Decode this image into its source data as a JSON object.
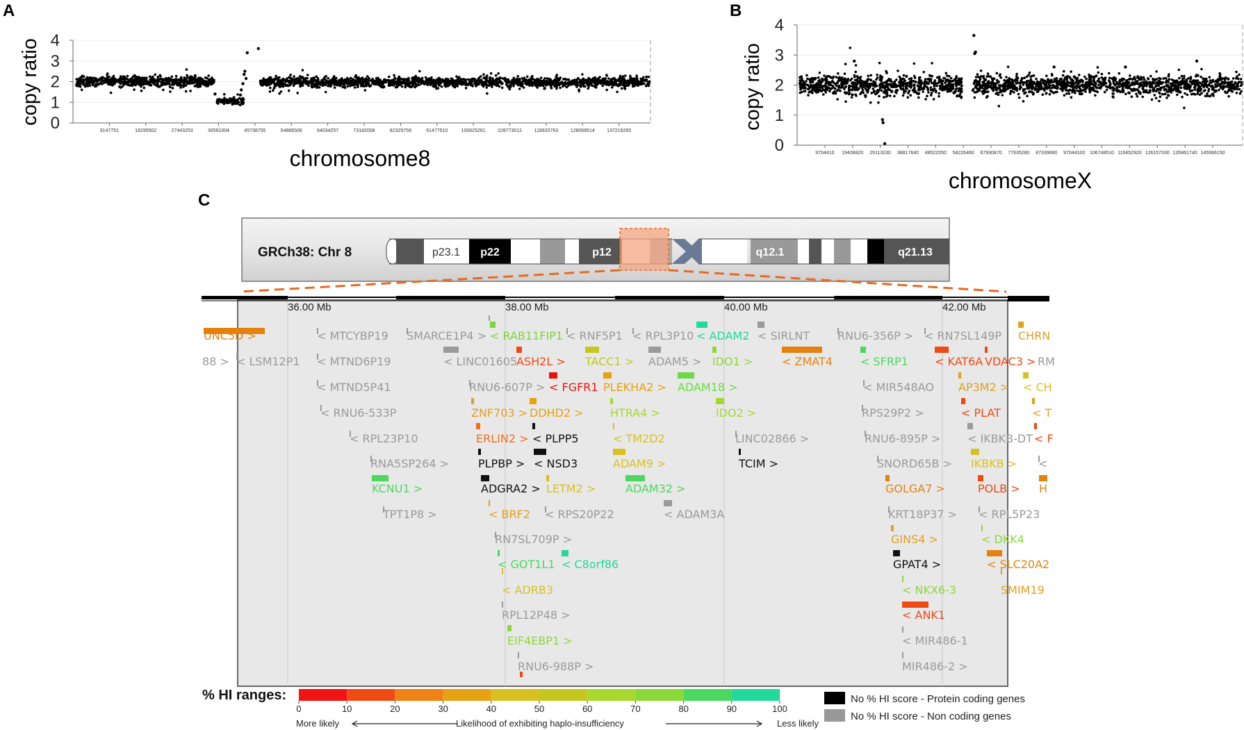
{
  "panels": {
    "a": "A",
    "b": "B",
    "c": "C"
  },
  "chart_data": [
    {
      "type": "scatter",
      "id": "A",
      "xlabel": "chromosome8",
      "ylabel": "copy ratio",
      "ylim": [
        0,
        4
      ],
      "yticks": [
        "0",
        "1",
        "2",
        "3",
        "4"
      ],
      "xlim": [
        0,
        145138636
      ],
      "xtick_labels": [
        "9147751",
        "18295502",
        "27443253",
        "36591004",
        "45738755",
        "54886506",
        "64034257",
        "73182008",
        "82329759",
        "91477510",
        "100625261",
        "109773012",
        "118920763",
        "128068514",
        "137216265"
      ],
      "segments": [
        {
          "start": 800000,
          "end": 35500000,
          "mean": 2.0,
          "sd": 0.12
        },
        {
          "start": 36200000,
          "end": 42900000,
          "mean": 1.05,
          "sd": 0.07
        },
        {
          "start": 47000000,
          "end": 145000000,
          "mean": 1.97,
          "sd": 0.12
        }
      ],
      "outliers": [
        [
          35700000,
          1.4
        ],
        [
          42100000,
          1.35
        ],
        [
          42300000,
          1.6
        ],
        [
          42700000,
          1.9
        ],
        [
          43000000,
          2.35
        ],
        [
          43200000,
          2.5
        ],
        [
          43500000,
          2.15
        ],
        [
          43800000,
          3.4
        ],
        [
          46600000,
          3.6
        ]
      ]
    },
    {
      "type": "scatter",
      "id": "B",
      "xlabel": "chromosomeX",
      "ylabel": "copy ratio",
      "ylim": [
        0,
        4
      ],
      "yticks": [
        "0",
        "1",
        "2",
        "3",
        "4"
      ],
      "xlim": [
        0,
        156040895
      ],
      "xtick_labels": [
        "9704410",
        "19408820",
        "29113230",
        "38817640",
        "48522050",
        "58226460",
        "67930870",
        "77635280",
        "87339690",
        "97044100",
        "106748510",
        "116452920",
        "126157330",
        "135861740",
        "145566150"
      ],
      "segments": [
        {
          "start": 800000,
          "end": 28500000,
          "mean": 2.0,
          "sd": 0.17
        },
        {
          "start": 28600000,
          "end": 30600000,
          "mean": 2.05,
          "sd": 0.2
        },
        {
          "start": 30600000,
          "end": 57800000,
          "mean": 2.0,
          "sd": 0.17
        },
        {
          "start": 61500000,
          "end": 156000000,
          "mean": 2.0,
          "sd": 0.16
        }
      ],
      "outliers": [
        [
          29900000,
          0.85
        ],
        [
          30100000,
          0.75
        ],
        [
          30700000,
          0.05
        ],
        [
          20000000,
          2.8
        ],
        [
          61900000,
          3.65
        ],
        [
          62200000,
          3.05
        ],
        [
          62500000,
          3.1
        ],
        [
          140000000,
          2.8
        ],
        [
          115000000,
          2.6
        ],
        [
          90000000,
          2.6
        ]
      ]
    }
  ],
  "ideogram": {
    "title": "GRCh38: Chr 8",
    "bands": [
      "p23.1",
      "p22",
      "p12",
      "q12.1",
      "q21.13"
    ]
  },
  "genome_browser": {
    "axis_labels": [
      "36.00 Mb",
      "38.00 Mb",
      "40.00 Mb",
      "42.00 Mb"
    ],
    "genes": [
      {
        "label": "UNC5D >",
        "color": "#E5820E"
      },
      {
        "label": "< MTCYBP19",
        "color": "#9a9a9a"
      },
      {
        "label": "SMARCE1P4 >",
        "color": "#9a9a9a"
      },
      {
        "label": "< RAB11FIP1",
        "color": "#7CD63A"
      },
      {
        "label": "< RNF5P1",
        "color": "#9a9a9a"
      },
      {
        "label": "< RPL3P10",
        "color": "#9a9a9a"
      },
      {
        "label": "< ADAM2",
        "color": "#22D89A"
      },
      {
        "label": "< SIRLNT",
        "color": "#9a9a9a"
      },
      {
        "label": "RNU6-356P >",
        "color": "#9a9a9a"
      },
      {
        "label": "< RN7SL149P",
        "color": "#9a9a9a"
      },
      {
        "label": "CHRN",
        "color": "#E0A020"
      },
      {
        "label": "88 >",
        "color": "#9a9a9a"
      },
      {
        "label": "< LSM12P1",
        "color": "#9a9a9a"
      },
      {
        "label": "< MTND6P19",
        "color": "#9a9a9a"
      },
      {
        "label": "< LINC01605",
        "color": "#9a9a9a"
      },
      {
        "label": "ASH2L >",
        "color": "#F04A14"
      },
      {
        "label": "TACC1 >",
        "color": "#C4C81E"
      },
      {
        "label": "ADAM5 >",
        "color": "#9a9a9a"
      },
      {
        "label": "IDO1 >",
        "color": "#8BD83A"
      },
      {
        "label": "< ZMAT4",
        "color": "#E5820E"
      },
      {
        "label": "< SFRP1",
        "color": "#4CD860"
      },
      {
        "label": "< KAT6A",
        "color": "#F04A14"
      },
      {
        "label": "VDAC3 >",
        "color": "#F04A14"
      },
      {
        "label": "RM",
        "color": "#9a9a9a"
      },
      {
        "label": "< MTND5P41",
        "color": "#9a9a9a"
      },
      {
        "label": "RNU6-607P >",
        "color": "#9a9a9a"
      },
      {
        "label": "< FGFR1",
        "color": "#EE1111"
      },
      {
        "label": "PLEKHA2 >",
        "color": "#E5A210"
      },
      {
        "label": "ADAM18 >",
        "color": "#6CD84A"
      },
      {
        "label": "< MIR548AO",
        "color": "#9a9a9a"
      },
      {
        "label": "AP3M2 >",
        "color": "#E0A020"
      },
      {
        "label": "< CH",
        "color": "#D8C020"
      },
      {
        "label": "< RNU6-533P",
        "color": "#9a9a9a"
      },
      {
        "label": "ZNF703 >",
        "color": "#E0A020"
      },
      {
        "label": "DDHD2 >",
        "color": "#E5A210"
      },
      {
        "label": "HTRA4 >",
        "color": "#A8D830"
      },
      {
        "label": "IDO2 >",
        "color": "#A8D830"
      },
      {
        "label": "RPS29P2 >",
        "color": "#9a9a9a"
      },
      {
        "label": "< PLAT",
        "color": "#F04A14"
      },
      {
        "label": "< T",
        "color": "#E0A020"
      },
      {
        "label": "< RPL23P10",
        "color": "#9a9a9a"
      },
      {
        "label": "ERLIN2 >",
        "color": "#F07020"
      },
      {
        "label": "< PLPP5",
        "color": "#111111"
      },
      {
        "label": "< TM2D2",
        "color": "#D8C020"
      },
      {
        "label": "LINC02866 >",
        "color": "#9a9a9a"
      },
      {
        "label": "RNU6-895P >",
        "color": "#9a9a9a"
      },
      {
        "label": "< IKBKB-DT",
        "color": "#9a9a9a"
      },
      {
        "label": "< F",
        "color": "#F04A14"
      },
      {
        "label": "RNA5SP264 >",
        "color": "#9a9a9a"
      },
      {
        "label": "PLPBP >",
        "color": "#111111"
      },
      {
        "label": "< NSD3",
        "color": "#111111"
      },
      {
        "label": "ADAM9 >",
        "color": "#D8C020"
      },
      {
        "label": "TCIM >",
        "color": "#111111"
      },
      {
        "label": "SNORD65B >",
        "color": "#9a9a9a"
      },
      {
        "label": "IKBKB >",
        "color": "#D8C020"
      },
      {
        "label": "<",
        "color": "#9a9a9a"
      },
      {
        "label": "KCNU1 >",
        "color": "#4CD860"
      },
      {
        "label": "ADGRA2 >",
        "color": "#111111"
      },
      {
        "label": "LETM2 >",
        "color": "#D8C020"
      },
      {
        "label": "ADAM32 >",
        "color": "#4CD860"
      },
      {
        "label": "GOLGA7 >",
        "color": "#E5820E"
      },
      {
        "label": "POLB >",
        "color": "#F04A14"
      },
      {
        "label": "H",
        "color": "#E5820E"
      },
      {
        "label": "TPT1P8 >",
        "color": "#9a9a9a"
      },
      {
        "label": "< BRF2",
        "color": "#E0A020"
      },
      {
        "label": "< RPS20P22",
        "color": "#9a9a9a"
      },
      {
        "label": "< ADAM3A",
        "color": "#9a9a9a"
      },
      {
        "label": "KRT18P37 >",
        "color": "#9a9a9a"
      },
      {
        "label": "< RPL5P23",
        "color": "#9a9a9a"
      },
      {
        "label": "RN7SL709P >",
        "color": "#9a9a9a"
      },
      {
        "label": "GINS4 >",
        "color": "#E0A020"
      },
      {
        "label": "< DKK4",
        "color": "#8BD83A"
      },
      {
        "label": "< GOT1L1",
        "color": "#4CD860"
      },
      {
        "label": "< C8orf86",
        "color": "#22D89A"
      },
      {
        "label": "GPAT4 >",
        "color": "#111111"
      },
      {
        "label": "< SLC20A2",
        "color": "#E5820E"
      },
      {
        "label": "< ADRB3",
        "color": "#D8C020"
      },
      {
        "label": "< NKX6-3",
        "color": "#8BD83A"
      },
      {
        "label": "SMIM19",
        "color": "#E0A020"
      },
      {
        "label": "RPL12P48 >",
        "color": "#9a9a9a"
      },
      {
        "label": "< ANK1",
        "color": "#F04A14"
      },
      {
        "label": "EIF4EBP1 >",
        "color": "#8BD83A"
      },
      {
        "label": "< MIR486-1",
        "color": "#9a9a9a"
      },
      {
        "label": "RNU6-988P >",
        "color": "#9a9a9a"
      },
      {
        "label": "MIR486-2 >",
        "color": "#9a9a9a"
      }
    ]
  },
  "legend": {
    "title": "% HI ranges:",
    "scale_ticks": [
      "0",
      "10",
      "20",
      "30",
      "40",
      "50",
      "60",
      "70",
      "80",
      "90",
      "100"
    ],
    "scale_colors": [
      "#F01414",
      "#F04A14",
      "#EE8214",
      "#E5A214",
      "#D8C020",
      "#C4C81E",
      "#A8D830",
      "#8BD83A",
      "#4CD860",
      "#22D89A"
    ],
    "more_likely": "More likely",
    "likelihood_label": "Likelihood of exhibiting haplo-insufficiency",
    "less_likely": "Less likely",
    "no_score_protein": "No % HI score - Protein coding genes",
    "no_score_noncoding": "No % HI score - Non coding genes",
    "no_score_protein_color": "#000000",
    "no_score_noncoding_color": "#999999"
  }
}
